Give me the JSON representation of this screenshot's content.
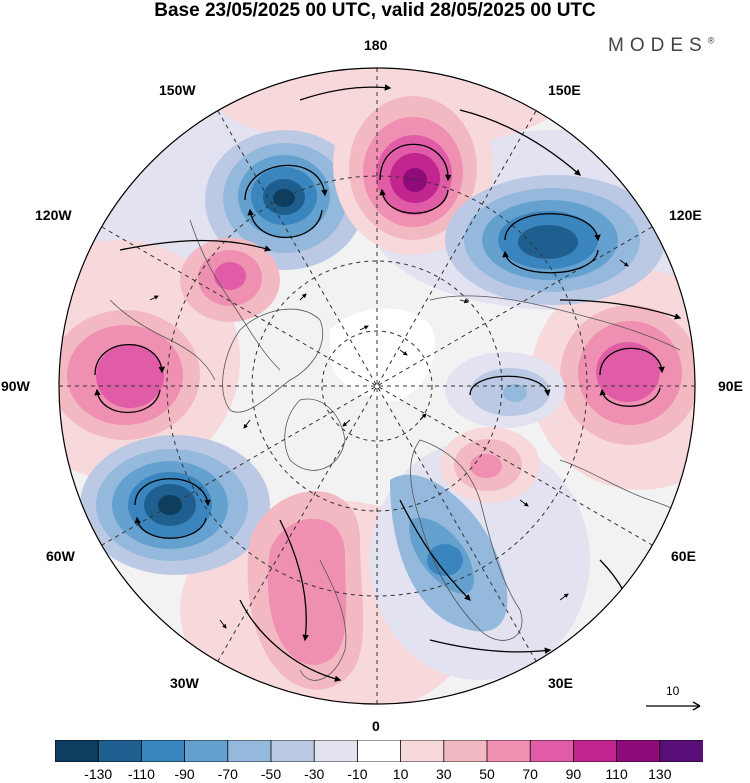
{
  "title": "Base 23/05/2025 00 UTC, valid 28/05/2025 00 UTC",
  "brand": "MODES",
  "brand_mark": "®",
  "longitude_labels": {
    "lon_180": "180",
    "lon_150E": "150E",
    "lon_120E": "120E",
    "lon_90E": "90E",
    "lon_60E": "60E",
    "lon_30E": "30E",
    "lon_0": "0",
    "lon_30W": "30W",
    "lon_60W": "60W",
    "lon_90W": "90W",
    "lon_120W": "120W",
    "lon_150W": "150W"
  },
  "reference_vector": {
    "label": "10"
  },
  "colorbar": {
    "colors": [
      "#0f3d5f",
      "#1f5f8f",
      "#3a85bd",
      "#65a1cf",
      "#94b9dd",
      "#bcc9e4",
      "#e2e2f1",
      "#ffffff",
      "#f7d9dc",
      "#f3b9c3",
      "#ef8fb1",
      "#e05ca6",
      "#c1258e",
      "#8f0a7a",
      "#5a0f78"
    ],
    "tick_labels": [
      "-130",
      "-110",
      "-90",
      "-70",
      "-50",
      "-30",
      "-10",
      "10",
      "30",
      "50",
      "70",
      "90",
      "110",
      "130"
    ]
  },
  "anomaly_centers": [
    {
      "name": "low-150W",
      "sign": "negative",
      "level": -130
    },
    {
      "name": "high-180",
      "sign": "positive",
      "level": 110
    },
    {
      "name": "low-130E",
      "sign": "negative",
      "level": -110
    },
    {
      "name": "high-110W",
      "sign": "positive",
      "level": 70
    },
    {
      "name": "high-90W",
      "sign": "positive",
      "level": 90
    },
    {
      "name": "low-60W",
      "sign": "negative",
      "level": -130
    },
    {
      "name": "high-20W",
      "sign": "positive",
      "level": 70
    },
    {
      "name": "low-25E",
      "sign": "negative",
      "level": -90
    },
    {
      "name": "high-90E",
      "sign": "positive",
      "level": 90
    },
    {
      "name": "low-80E",
      "sign": "negative",
      "level": -50
    },
    {
      "name": "high-60E",
      "sign": "positive",
      "level": 50
    }
  ]
}
